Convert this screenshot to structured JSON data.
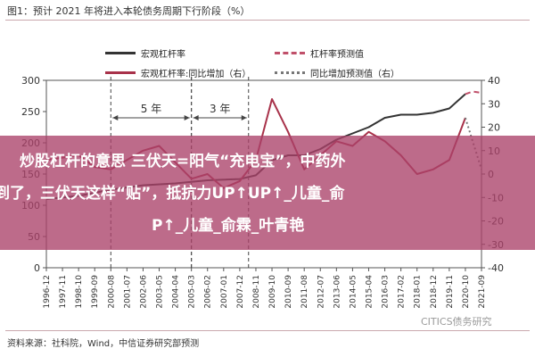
{
  "figure_title": "图1：预计 2021 年将进入本轮债务周期下行阶段（%）",
  "source": "资料来源：社科院，Wind，中信证券研究部预测",
  "watermark": "CITICS债务研究",
  "banner": {
    "line1": "炒股杠杆的意思 三伏天=阳气“充电宝”，中药外",
    "line2": "到了，三伏天这样“贴”，抵抗力UP↑UP↑_儿童_俞",
    "line3": "P↑_儿童_俞霖_叶青艳"
  },
  "chart_data": {
    "type": "line",
    "title": "预计 2021 年将进入本轮债务周期下行阶段（%）",
    "x_tick_labels": [
      "1996-12",
      "1997-11",
      "1998-10",
      "1999-09",
      "2000-08",
      "2001-07",
      "2002-06",
      "2003-05",
      "2004-04",
      "2005-03",
      "2006-02",
      "2007-01",
      "2007-12",
      "2008-11",
      "2009-10",
      "2010-09",
      "2011-08",
      "2012-07",
      "2013-06",
      "2014-05",
      "2015-04",
      "2016-03",
      "2017-02",
      "2018-01",
      "2018-12",
      "2019-11",
      "2020-10",
      "2021-09"
    ],
    "y_left": {
      "ylim": [
        0,
        300
      ],
      "ticks": [
        0,
        50,
        100,
        150,
        200,
        250,
        300
      ]
    },
    "y_right": {
      "ylim": [
        -40,
        40
      ],
      "ticks": [
        -40,
        -30,
        -20,
        -10,
        0,
        10,
        20,
        30,
        40
      ]
    },
    "annotations": [
      {
        "label": "5 年",
        "from": "2000-08",
        "to": "2005-03"
      },
      {
        "label": "3 年",
        "from": "2005-03",
        "to": "2008-06"
      }
    ],
    "series": [
      {
        "name": "宏观杠杆率",
        "axis": "left",
        "color": "#333333",
        "style": "solid",
        "x": [
          "1996-12",
          "1998-10",
          "2000-08",
          "2002-06",
          "2004-04",
          "2006-02",
          "2007-12",
          "2008-11",
          "2009-10",
          "2010-09",
          "2011-08",
          "2012-07",
          "2013-06",
          "2014-05",
          "2015-04",
          "2016-03",
          "2017-02",
          "2018-01",
          "2018-12",
          "2019-11",
          "2020-10"
        ],
        "values": [
          110,
          115,
          125,
          132,
          135,
          140,
          142,
          148,
          172,
          180,
          180,
          190,
          205,
          215,
          225,
          240,
          245,
          245,
          248,
          255,
          278
        ]
      },
      {
        "name": "杠杆率预测值",
        "axis": "left",
        "color": "#c0506a",
        "style": "dashed",
        "x": [
          "2020-10",
          "2021-03",
          "2021-09"
        ],
        "values": [
          278,
          282,
          280
        ]
      },
      {
        "name": "宏观杠杆率:同比增加（右）",
        "axis": "right",
        "color": "#a8324a",
        "style": "solid",
        "x": [
          "1996-12",
          "1997-11",
          "1998-10",
          "1999-09",
          "2000-08",
          "2001-07",
          "2002-06",
          "2003-05",
          "2004-04",
          "2005-03",
          "2006-02",
          "2007-01",
          "2007-12",
          "2008-11",
          "2009-10",
          "2010-09",
          "2011-08",
          "2012-07",
          "2013-06",
          "2014-05",
          "2015-04",
          "2016-03",
          "2017-02",
          "2018-01",
          "2018-12",
          "2019-11",
          "2020-10"
        ],
        "values": [
          6,
          7,
          8,
          3,
          2,
          6,
          10,
          12,
          5,
          -2,
          0,
          -6,
          -3,
          6,
          32,
          18,
          2,
          8,
          14,
          12,
          18,
          14,
          8,
          0,
          2,
          6,
          24
        ]
      },
      {
        "name": "同比增加预测值（右）",
        "axis": "right",
        "color": "#777777",
        "style": "dotted",
        "x": [
          "2020-10",
          "2021-03",
          "2021-09"
        ],
        "values": [
          24,
          14,
          2
        ]
      }
    ],
    "grid": false,
    "legend_position": "top"
  }
}
